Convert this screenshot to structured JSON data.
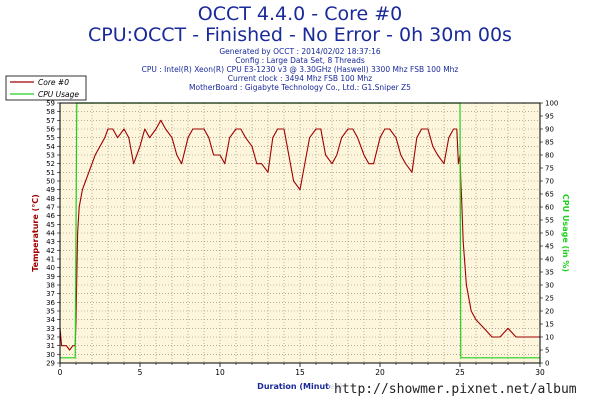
{
  "title": "OCCT 4.4.0 - Core #0",
  "subtitle": "CPU:OCCT - Finished - No Error - 0h 30m 00s",
  "info_lines": [
    "Generated by OCCT : 2014/02/02 18:37:16",
    "Config : Large Data Set, 8 Threads",
    "CPU : Intel(R) Xeon(R) CPU E3-1230 v3 @ 3.30GHz (Haswell) 3300 Mhz FSB 100 Mhz",
    "Current clock : 3494 Mhz FSB 100 Mhz",
    "MotherBoard : Gigabyte Technology Co., Ltd.: G1.Sniper Z5"
  ],
  "watermark": "http://showmer.pixnet.net/album",
  "colors": {
    "background": "#ffffff",
    "plot_background": "#fdf6dc",
    "grid": "#8c8470",
    "temperature": "#a00000",
    "cpu_usage": "#20d020",
    "title": "#1a2a9a"
  },
  "chart_data": {
    "type": "line",
    "xlabel": "Duration (Minutes)",
    "ylabel_left": "Temperature (°C)",
    "ylabel_right": "CPU Usage (in %)",
    "xlim": [
      0,
      30
    ],
    "ylim_left": [
      29,
      59
    ],
    "ylim_right": [
      0,
      100
    ],
    "x_ticks": [
      0,
      5,
      10,
      15,
      20,
      25,
      30
    ],
    "x_minor_ticks": [
      1,
      2,
      3,
      4,
      6,
      7,
      8,
      9,
      11,
      12,
      13,
      14,
      16,
      17,
      18,
      19,
      21,
      22,
      23,
      24,
      26,
      27,
      28,
      29
    ],
    "y_left_ticks": [
      29,
      30,
      31,
      32,
      33,
      34,
      35,
      36,
      37,
      38,
      39,
      40,
      41,
      42,
      43,
      44,
      45,
      46,
      47,
      48,
      49,
      50,
      51,
      52,
      53,
      54,
      55,
      56,
      57,
      58,
      59
    ],
    "y_right_ticks": [
      0,
      5,
      10,
      15,
      20,
      25,
      30,
      35,
      40,
      45,
      50,
      55,
      60,
      65,
      70,
      75,
      80,
      85,
      90,
      95,
      100
    ],
    "grid": true,
    "legend_position": "left",
    "series": [
      {
        "name": "Core #0",
        "color": "#a00000",
        "axis": "left",
        "x": [
          0,
          0.1,
          0.2,
          0.4,
          0.6,
          0.8,
          0.95,
          1.0,
          1.1,
          1.2,
          1.4,
          1.6,
          1.8,
          2.0,
          2.2,
          2.5,
          2.8,
          3.0,
          3.3,
          3.6,
          4.0,
          4.3,
          4.6,
          5.0,
          5.3,
          5.6,
          6.0,
          6.3,
          6.6,
          7.0,
          7.3,
          7.6,
          8.0,
          8.3,
          8.6,
          9.0,
          9.3,
          9.6,
          10.0,
          10.3,
          10.6,
          11.0,
          11.3,
          11.6,
          12.0,
          12.3,
          12.6,
          13.0,
          13.3,
          13.6,
          14.0,
          14.3,
          14.6,
          15.0,
          15.3,
          15.6,
          16.0,
          16.3,
          16.6,
          17.0,
          17.3,
          17.6,
          18.0,
          18.3,
          18.6,
          19.0,
          19.3,
          19.6,
          20.0,
          20.3,
          20.6,
          21.0,
          21.3,
          21.6,
          22.0,
          22.3,
          22.6,
          23.0,
          23.3,
          23.6,
          24.0,
          24.3,
          24.6,
          24.8,
          24.9,
          25.0,
          25.05,
          25.1,
          25.2,
          25.4,
          25.7,
          26.0,
          26.5,
          27.0,
          27.5,
          28.0,
          28.5,
          29.0,
          29.5,
          30.0
        ],
        "y": [
          33,
          31,
          31,
          31,
          30.5,
          31,
          31,
          34,
          44,
          47,
          49,
          50,
          51,
          52,
          53,
          54,
          55,
          56,
          56,
          55,
          56,
          55,
          52,
          54,
          56,
          55,
          56,
          57,
          56,
          55,
          53,
          52,
          55,
          56,
          56,
          56,
          55,
          53,
          53,
          52,
          55,
          56,
          56,
          55,
          54,
          52,
          52,
          51,
          55,
          56,
          56,
          53,
          50,
          49,
          52,
          55,
          56,
          56,
          53,
          52,
          53,
          55,
          56,
          56,
          55,
          53,
          52,
          52,
          55,
          56,
          56,
          55,
          53,
          52,
          51,
          55,
          56,
          56,
          54,
          53,
          52,
          55,
          56,
          56,
          52,
          53,
          50,
          48,
          43,
          38,
          35,
          34,
          33,
          32,
          32,
          33,
          32,
          32,
          32,
          32
        ]
      },
      {
        "name": "CPU Usage",
        "color": "#20d020",
        "axis": "right",
        "x": [
          0,
          0.95,
          1.0,
          1.05,
          25.0,
          25.05,
          30.0
        ],
        "y": [
          2,
          2,
          50,
          100,
          100,
          2,
          2
        ]
      }
    ]
  }
}
